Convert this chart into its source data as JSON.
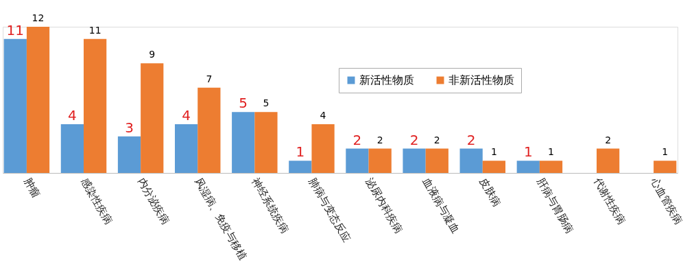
{
  "chart_data": {
    "type": "bar",
    "categories": [
      "肿瘤",
      "感染性疾病",
      "内分泌疾病",
      "风湿病、免疫与移植",
      "神经系统疾病",
      "肺病与变态反应",
      "泌尿内科疾病",
      "血液病与凝血",
      "皮肤病",
      "肝病与胃肠病",
      "代谢性疾病",
      "心血管疾病"
    ],
    "series": [
      {
        "name": "新活性物质",
        "color": "#5b9bd5",
        "values": [
          11,
          4,
          3,
          4,
          5,
          1,
          2,
          2,
          2,
          1,
          null,
          null
        ]
      },
      {
        "name": "非新活性物质",
        "color": "#ed7d31",
        "values": [
          12,
          11,
          9,
          7,
          5,
          4,
          2,
          2,
          1,
          1,
          2,
          1
        ]
      }
    ],
    "data_labels": true,
    "legend": "top right",
    "grid": false,
    "tick_labels": "x"
  }
}
